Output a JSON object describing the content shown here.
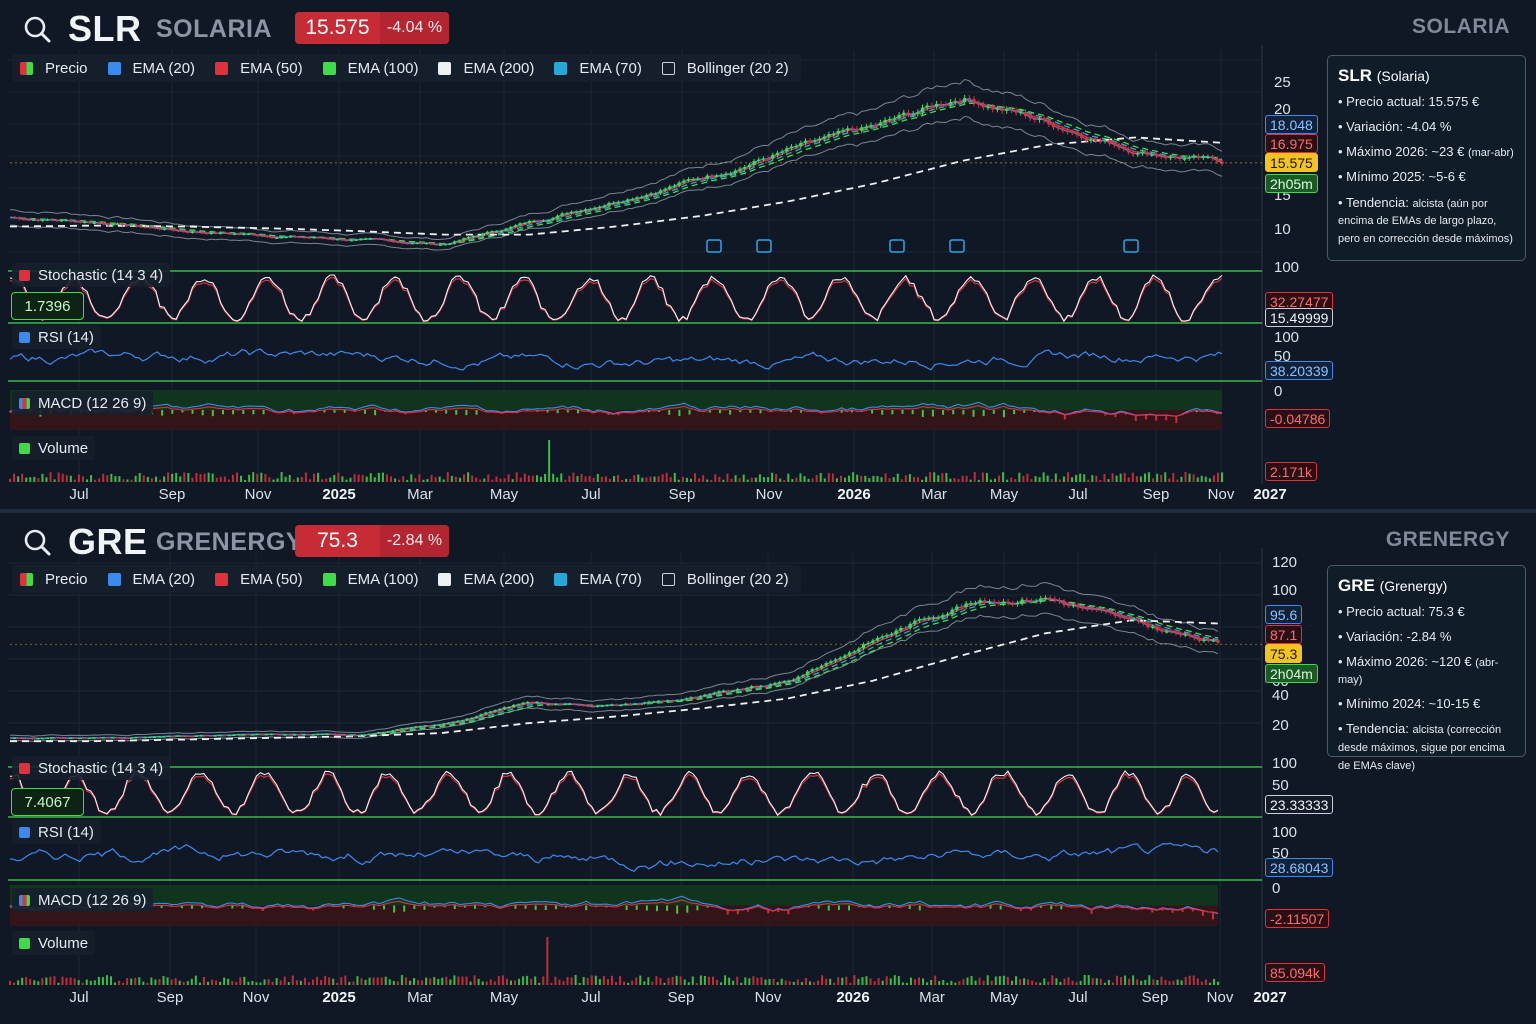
{
  "colors": {
    "background": "#0f1824",
    "up": "#3fdc4a",
    "down": "#e0303c",
    "ema20": "#3b8af0",
    "ema50": "#e0303c",
    "ema100": "#3fdc4a",
    "ema200": "#eef1f4",
    "ema70": "#27a9d6",
    "rsi": "#3b8af0"
  },
  "legend": {
    "items": [
      {
        "label": "Precio",
        "color": "split"
      },
      {
        "label": "EMA (20)",
        "color": "#3b8af0"
      },
      {
        "label": "EMA (50)",
        "color": "#e0303c"
      },
      {
        "label": "EMA (100)",
        "color": "#3fdc4a"
      },
      {
        "label": "EMA (200)",
        "color": "#eef1f4"
      },
      {
        "label": "EMA (70)",
        "color": "#27a9d6"
      },
      {
        "label": "Bollinger (20 2)",
        "color": "outline"
      }
    ]
  },
  "x_axis": [
    "Jul",
    "Sep",
    "Nov",
    "2025",
    "Mar",
    "May",
    "Jul",
    "Sep",
    "Nov",
    "2026",
    "Mar",
    "May",
    "Jul",
    "Sep",
    "Nov",
    "2027"
  ],
  "panels": [
    {
      "ticker": "SLR",
      "company": "SOLARIA",
      "watermark": "SOLARIA",
      "price": "15.575",
      "change": "-4.04 %",
      "price_axis": [
        "25",
        "20",
        "15",
        "10"
      ],
      "tags": {
        "ema20": "18.048",
        "ema50": "16.975",
        "price": "15.575",
        "countdown": "2h05m"
      },
      "stochastic": {
        "label": "Stochastic (14 3 4)",
        "value_box": "1.7396",
        "axis": [
          "100",
          "50"
        ],
        "k": "32.27477",
        "d": "15.49999"
      },
      "rsi": {
        "label": "RSI (14)",
        "axis": [
          "100",
          "50",
          "0"
        ],
        "value": "38.20339"
      },
      "macd": {
        "label": "MACD (12 26 9)",
        "value": "-0.04786"
      },
      "volume": {
        "label": "Volume",
        "value": "2.171k"
      },
      "info": {
        "title": "SLR",
        "subtitle": "(Solaria)",
        "lines": [
          "Precio actual: 15.575 €",
          "Variación: -4.04 %",
          "Máximo 2026: ~23 €",
          "Mínimo 2025: ~5-6 €"
        ],
        "max_note": "(mar-abr)",
        "trend_label": "Tendencia:",
        "trend_text": "alcista (aún por encima de EMAs de largo plazo, pero en corrección desde máximos)"
      },
      "chart_data": {
        "type": "line",
        "title": "",
        "ylabel": "",
        "x": [
          "Jul",
          "Sep",
          "Nov",
          "2025",
          "Mar",
          "May",
          "Jul",
          "Sep",
          "Nov",
          "2026",
          "Mar",
          "May",
          "Jul",
          "Sep",
          "Nov"
        ],
        "series": [
          {
            "name": "Precio",
            "values": [
              9.5,
              9.0,
              8.0,
              7.5,
              7.0,
              6.5,
              9.0,
              11.5,
              14.0,
              17.0,
              19.5,
              23.0,
              20.0,
              17.0,
              15.575
            ]
          },
          {
            "name": "EMA (200)",
            "values": [
              8.5,
              8.6,
              8.5,
              8.3,
              8.0,
              7.6,
              7.6,
              8.5,
              9.7,
              11.3,
              13.3,
              15.8,
              17.6,
              18.4,
              17.8
            ]
          }
        ],
        "ylim": [
          5,
          27
        ]
      }
    },
    {
      "ticker": "GRE",
      "company": "GRENERGY",
      "watermark": "GRENERGY",
      "price": "75.3",
      "change": "-2.84 %",
      "price_axis": [
        "120",
        "100",
        "80",
        "60",
        "40",
        "20"
      ],
      "tags": {
        "ema20": "95.6",
        "ema50": "87.1",
        "price": "75.3",
        "countdown": "2h04m"
      },
      "stochastic": {
        "label": "Stochastic (14 3 4)",
        "value_box": "7.4067",
        "axis": [
          "100",
          "50"
        ],
        "k": "23.33333",
        "d": ""
      },
      "rsi": {
        "label": "RSI (14)",
        "axis": [
          "100",
          "50",
          "0"
        ],
        "value": "28.68043"
      },
      "macd": {
        "label": "MACD (12 26 9)",
        "value": "-2.11507"
      },
      "volume": {
        "label": "Volume",
        "value": "85.094k"
      },
      "info": {
        "title": "GRE",
        "subtitle": "(Grenergy)",
        "lines": [
          "Precio actual: 75.3 €",
          "Variación: -2.84 %",
          "Máximo 2026: ~120 €",
          "Mínimo 2024: ~10-15 €"
        ],
        "max_note": "(abr-may)",
        "trend_label": "Tendencia:",
        "trend_text": "alcista (corrección desde máximos, sigue por encima de EMAs clave)"
      },
      "chart_data": {
        "type": "line",
        "title": "",
        "ylabel": "",
        "x": [
          "Jul",
          "Sep",
          "Nov",
          "2025",
          "Mar",
          "May",
          "Jul",
          "Sep",
          "Nov",
          "2026",
          "Mar",
          "May",
          "Jul",
          "Sep",
          "Nov"
        ],
        "series": [
          {
            "name": "Precio",
            "values": [
              18,
              18,
              19,
              20,
              20,
              26,
              40,
              38,
              43,
              52,
              78,
              100,
              105,
              88,
              75.3
            ]
          },
          {
            "name": "EMA (200)",
            "values": [
              16,
              16,
              17,
              18,
              19,
              21,
              27,
              31,
              36,
              42,
              53,
              68,
              82,
              90,
              88
            ]
          }
        ],
        "ylim": [
          10,
          125
        ]
      }
    }
  ]
}
